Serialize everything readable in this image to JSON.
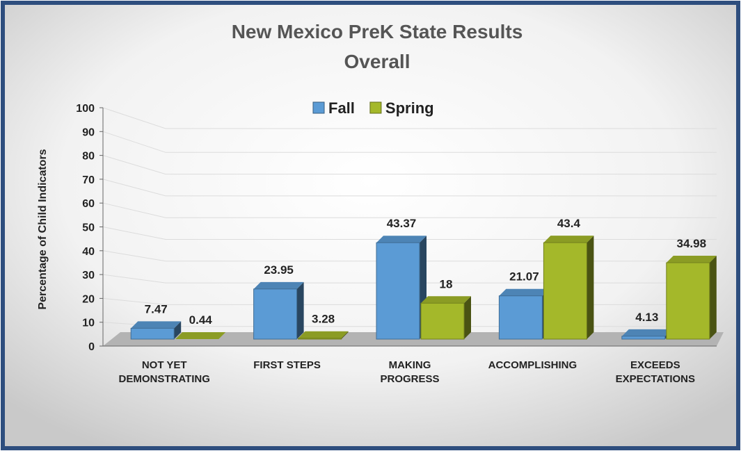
{
  "chart_data": {
    "type": "bar3d",
    "title": "New Mexico PreK State Results\nOverall",
    "y_label": "Percentage of Child Indicators",
    "categories": [
      "NOT YET\nDEMONSTRATING",
      "FIRST STEPS",
      "MAKING\nPROGRESS",
      "ACCOMPLISHING",
      "EXCEEDS\nEXPECTATIONS"
    ],
    "series": [
      {
        "name": "Fall",
        "color": "#5b9bd5",
        "values": [
          7.47,
          23.95,
          43.37,
          21.07,
          4.13
        ]
      },
      {
        "name": "Spring",
        "color": "#a4b82a",
        "values": [
          0.44,
          3.28,
          18,
          43.4,
          34.98
        ]
      }
    ],
    "ylim": [
      0,
      100
    ],
    "yticks": [
      0,
      10,
      20,
      30,
      40,
      50,
      60,
      70,
      80,
      90,
      100
    ],
    "grid": true,
    "legend": "top"
  }
}
